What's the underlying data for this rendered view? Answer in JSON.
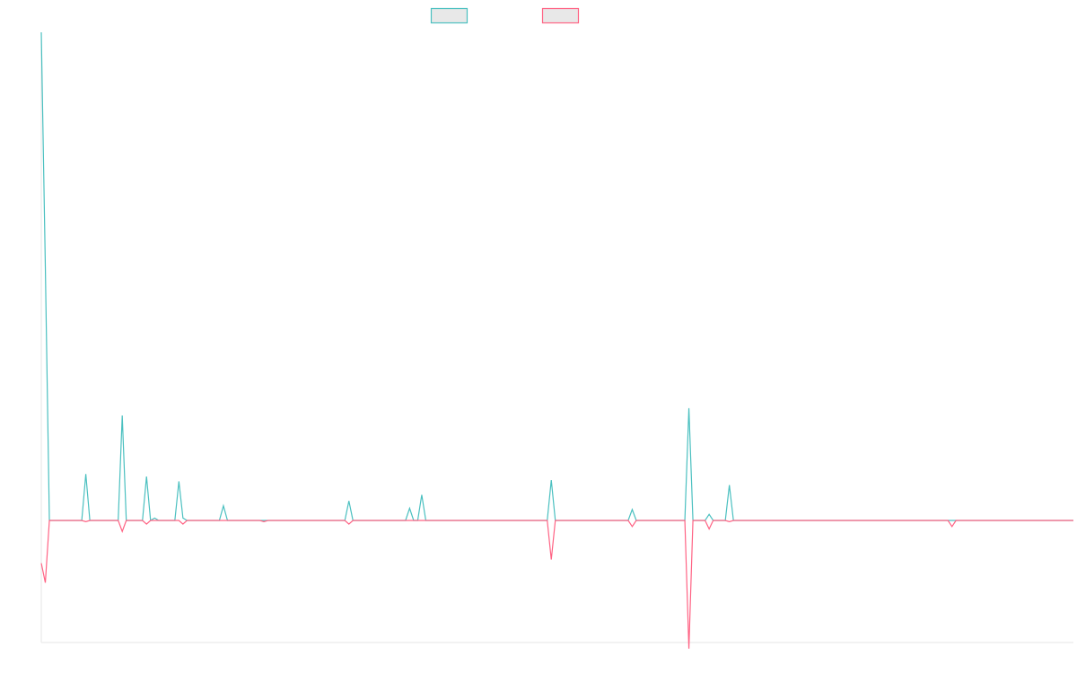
{
  "chart_data": {
    "type": "line",
    "title": "",
    "xlabel": "",
    "ylabel": "",
    "grid": false,
    "legend": "top-center",
    "n_points": 256,
    "ylim": [
      -100,
      400
    ],
    "series": [
      {
        "color": "#4bc0c0",
        "legend_fill": "#e8e8e8",
        "spikes": [
          [
            0,
            400
          ],
          [
            1,
            208
          ],
          [
            2,
            0
          ],
          [
            11,
            38
          ],
          [
            20,
            86
          ],
          [
            26,
            36
          ],
          [
            28,
            2
          ],
          [
            34,
            32
          ],
          [
            35,
            2
          ],
          [
            45,
            12
          ],
          [
            55,
            0
          ],
          [
            58,
            0
          ],
          [
            76,
            16
          ],
          [
            91,
            10
          ],
          [
            94,
            21
          ],
          [
            126,
            33
          ],
          [
            146,
            9
          ],
          [
            160,
            92
          ],
          [
            165,
            5
          ],
          [
            170,
            29
          ],
          [
            225,
            0
          ]
        ]
      },
      {
        "color": "#ff6384",
        "legend_fill": "#e8e8e8",
        "spikes": [
          [
            0,
            -35
          ],
          [
            1,
            -51
          ],
          [
            2,
            0
          ],
          [
            11,
            -1
          ],
          [
            20,
            -9
          ],
          [
            26,
            -3
          ],
          [
            35,
            -3
          ],
          [
            55,
            -1
          ],
          [
            76,
            -3
          ],
          [
            126,
            -32
          ],
          [
            146,
            -5
          ],
          [
            160,
            -105
          ],
          [
            165,
            -7
          ],
          [
            170,
            -1
          ],
          [
            225,
            -5
          ]
        ]
      }
    ]
  }
}
